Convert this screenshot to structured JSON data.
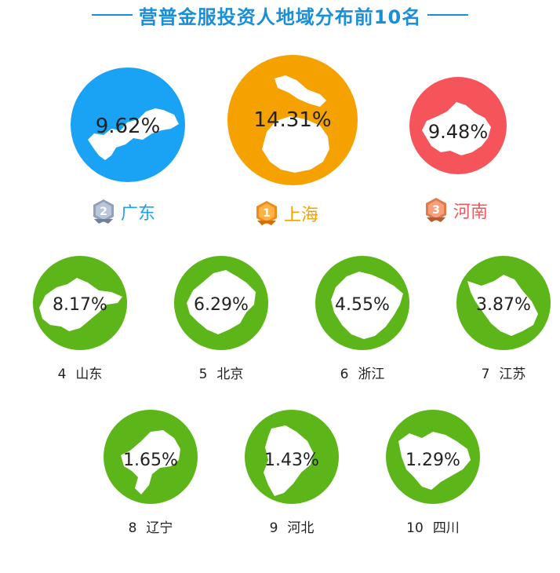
{
  "title": "营普金服投资人地域分布前10名",
  "colors": {
    "title": "#1a8fd9",
    "rank1": "#f5a100",
    "rank2": "#1aa3f5",
    "rank3": "#f5555a",
    "others": "#5cb61a"
  },
  "top3": [
    {
      "rank": "2",
      "region": "广东",
      "percent": "9.62%",
      "label_color": "#1aa3f5",
      "badge_icon": "silver-medal-icon"
    },
    {
      "rank": "1",
      "region": "上海",
      "percent": "14.31%",
      "label_color": "#f5a100",
      "badge_icon": "gold-medal-icon"
    },
    {
      "rank": "3",
      "region": "河南",
      "percent": "9.48%",
      "label_color": "#f5555a",
      "badge_icon": "bronze-medal-icon"
    }
  ],
  "others": [
    {
      "rank": "4",
      "region": "山东",
      "percent": "8.17%"
    },
    {
      "rank": "5",
      "region": "北京",
      "percent": "6.29%"
    },
    {
      "rank": "6",
      "region": "浙江",
      "percent": "4.55%"
    },
    {
      "rank": "7",
      "region": "江苏",
      "percent": "3.87%"
    },
    {
      "rank": "8",
      "region": "辽宁",
      "percent": "1.65%"
    },
    {
      "rank": "9",
      "region": "河北",
      "percent": "1.43%"
    },
    {
      "rank": "10",
      "region": "四川",
      "percent": "1.29%"
    }
  ],
  "chart_data": {
    "type": "table",
    "title": "营普金服投资人地域分布前10名",
    "categories": [
      "上海",
      "广东",
      "河南",
      "山东",
      "北京",
      "浙江",
      "江苏",
      "辽宁",
      "河北",
      "四川"
    ],
    "ranks": [
      1,
      2,
      3,
      4,
      5,
      6,
      7,
      8,
      9,
      10
    ],
    "values": [
      14.31,
      9.62,
      9.48,
      8.17,
      6.29,
      4.55,
      3.87,
      1.65,
      1.43,
      1.29
    ],
    "unit": "%"
  }
}
